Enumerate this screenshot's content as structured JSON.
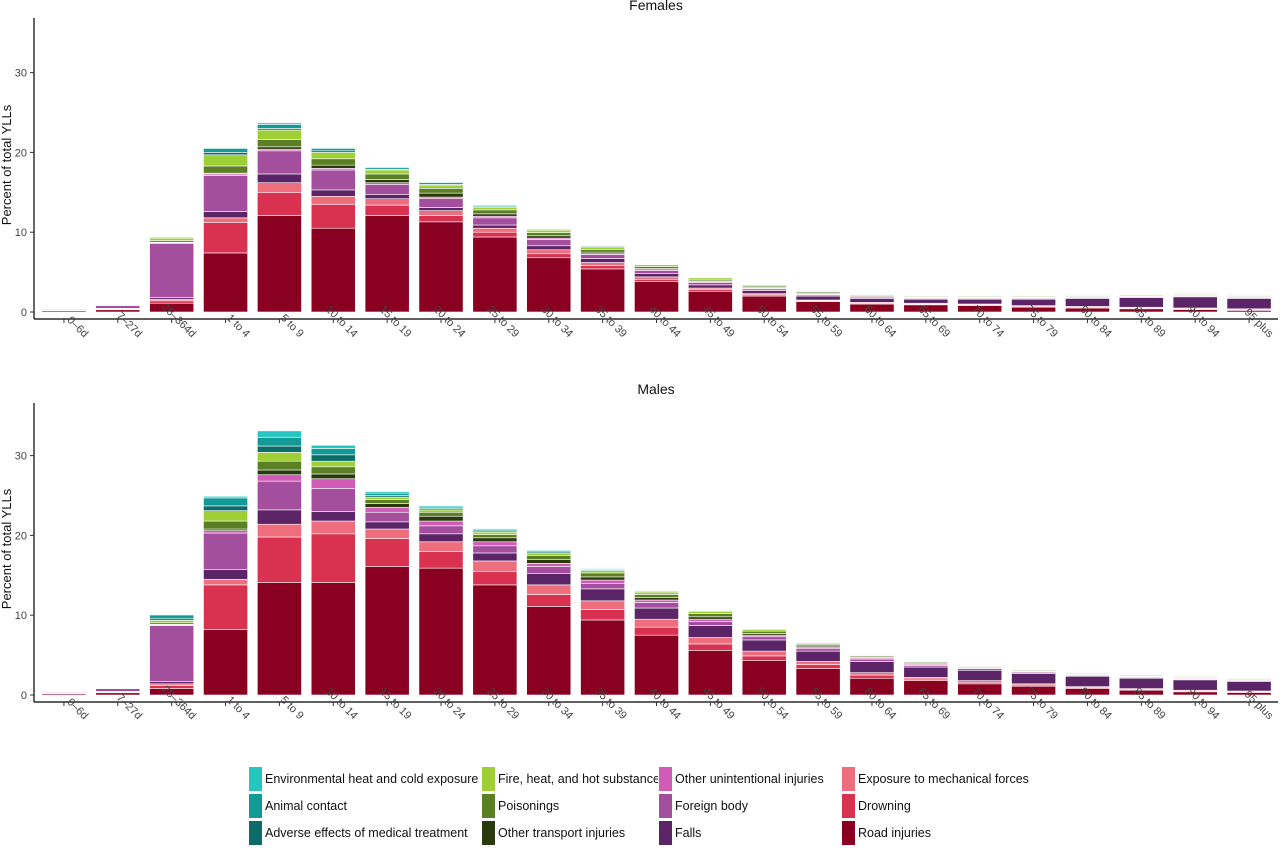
{
  "chart_data": [
    {
      "type": "bar",
      "stacked": true,
      "title": "Females",
      "xlabel": "",
      "ylabel": "Percent of total YLLs",
      "ylim": [
        0,
        35
      ],
      "yticks": [
        0,
        10,
        20,
        30
      ],
      "grid": false,
      "legend_position": "bottom",
      "categories": [
        "0–6d",
        "7–27d",
        "28–364d",
        "1 to 4",
        "5 to 9",
        "10 to 14",
        "15 to 19",
        "20 to 24",
        "25 to 29",
        "30 to 34",
        "35 to 39",
        "40 to 44",
        "45 to 49",
        "50 to 54",
        "55 to 59",
        "60 to 64",
        "65 to 69",
        "70 to 74",
        "75 to 79",
        "80 to 84",
        "85 to 89",
        "90 to 94",
        "95 plus"
      ],
      "series": [
        {
          "name": "Road injuries",
          "values": [
            0.2,
            0.3,
            1.1,
            7.4,
            12.1,
            10.5,
            12.1,
            11.3,
            9.4,
            6.8,
            5.4,
            3.8,
            2.6,
            2.0,
            1.3,
            1.0,
            0.9,
            0.8,
            0.6,
            0.5,
            0.4,
            0.3,
            0.2
          ]
        },
        {
          "name": "Drowning",
          "values": [
            0.02,
            0.05,
            0.3,
            3.8,
            2.9,
            3.0,
            1.3,
            0.8,
            0.6,
            0.5,
            0.4,
            0.3,
            0.2,
            0.15,
            0.1,
            0.1,
            0.1,
            0.1,
            0.1,
            0.1,
            0.1,
            0.1,
            0.1
          ]
        },
        {
          "name": "Exposure to mechanical forces",
          "values": [
            0.02,
            0.05,
            0.2,
            0.6,
            1.2,
            1.0,
            0.8,
            0.6,
            0.5,
            0.5,
            0.4,
            0.3,
            0.2,
            0.15,
            0.1,
            0.1,
            0.1,
            0.1,
            0.1,
            0.1,
            0.1,
            0.1,
            0.1
          ]
        },
        {
          "name": "Falls",
          "values": [
            0.02,
            0.05,
            0.2,
            0.8,
            1.1,
            0.8,
            0.5,
            0.4,
            0.4,
            0.5,
            0.5,
            0.4,
            0.4,
            0.4,
            0.5,
            0.5,
            0.5,
            0.6,
            0.8,
            1.0,
            1.2,
            1.4,
            1.3
          ]
        },
        {
          "name": "Foreign body",
          "values": [
            0.15,
            0.4,
            6.8,
            4.5,
            2.9,
            2.5,
            1.3,
            1.1,
            0.9,
            0.8,
            0.5,
            0.4,
            0.3,
            0.2,
            0.15,
            0.15,
            0.1,
            0.1,
            0.1,
            0.1,
            0.1,
            0.1,
            0.1
          ]
        },
        {
          "name": "Other unintentional injuries",
          "values": [
            0.02,
            0.02,
            0.1,
            0.2,
            0.2,
            0.2,
            0.2,
            0.2,
            0.2,
            0.15,
            0.1,
            0.1,
            0.1,
            0.1,
            0.1,
            0.1,
            0.1,
            0.1,
            0.1,
            0.1,
            0.1,
            0.1,
            0.1
          ]
        },
        {
          "name": "Other transport injuries",
          "values": [
            0.01,
            0.01,
            0.05,
            0.1,
            0.3,
            0.4,
            0.4,
            0.5,
            0.3,
            0.3,
            0.2,
            0.15,
            0.1,
            0.1,
            0.1,
            0.1,
            0.05,
            0.05,
            0.05,
            0.05,
            0.05,
            0.05,
            0.05
          ]
        },
        {
          "name": "Poisonings",
          "values": [
            0.02,
            0.03,
            0.2,
            0.9,
            0.9,
            0.8,
            0.7,
            0.6,
            0.5,
            0.4,
            0.35,
            0.25,
            0.2,
            0.15,
            0.15,
            0.1,
            0.1,
            0.1,
            0.1,
            0.1,
            0.1,
            0.1,
            0.1
          ]
        },
        {
          "name": "Fire, heat, and hot substances",
          "values": [
            0.02,
            0.03,
            0.3,
            1.4,
            1.2,
            0.8,
            0.5,
            0.4,
            0.3,
            0.3,
            0.3,
            0.25,
            0.2,
            0.15,
            0.1,
            0.1,
            0.1,
            0.1,
            0.1,
            0.1,
            0.1,
            0.1,
            0.1
          ]
        },
        {
          "name": "Adverse effects of medical treatment",
          "values": [
            0.01,
            0.01,
            0.1,
            0.3,
            0.2,
            0.2,
            0.1,
            0.1,
            0.1,
            0.1,
            0.1,
            0.05,
            0.05,
            0.05,
            0.05,
            0.05,
            0.05,
            0.05,
            0.05,
            0.05,
            0.05,
            0.05,
            0.05
          ]
        },
        {
          "name": "Animal contact",
          "values": [
            0.01,
            0.01,
            0.1,
            0.5,
            0.5,
            0.3,
            0.2,
            0.2,
            0.15,
            0.1,
            0.1,
            0.05,
            0.05,
            0.05,
            0.05,
            0.05,
            0.05,
            0.05,
            0.05,
            0.05,
            0.05,
            0.05,
            0.05
          ]
        },
        {
          "name": "Environmental heat and cold exposure",
          "values": [
            0.01,
            0.01,
            0.05,
            0.1,
            0.2,
            0.1,
            0.1,
            0.1,
            0.1,
            0.05,
            0.05,
            0.05,
            0.05,
            0.05,
            0.05,
            0.05,
            0.05,
            0.05,
            0.05,
            0.05,
            0.05,
            0.05,
            0.05
          ]
        }
      ]
    },
    {
      "type": "bar",
      "stacked": true,
      "title": "Males",
      "xlabel": "",
      "ylabel": "Percent of total YLLs",
      "ylim": [
        0,
        35
      ],
      "yticks": [
        0,
        10,
        20,
        30
      ],
      "grid": false,
      "legend_position": "bottom",
      "categories": [
        "0–6d",
        "7–27d",
        "28–364d",
        "1 to 4",
        "5 to 9",
        "10 to 14",
        "15 to 19",
        "20 to 24",
        "25 to 29",
        "30 to 34",
        "35 to 39",
        "40 to 44",
        "45 to 49",
        "50 to 54",
        "55 to 59",
        "60 to 64",
        "65 to 69",
        "70 to 74",
        "75 to 79",
        "80 to 84",
        "85 to 89",
        "90 to 94",
        "95 plus"
      ],
      "series": [
        {
          "name": "Road injuries",
          "values": [
            0.2,
            0.3,
            0.8,
            8.2,
            14.1,
            14.1,
            16.1,
            15.9,
            13.8,
            11.1,
            9.4,
            7.5,
            5.6,
            4.3,
            3.3,
            2.1,
            1.8,
            1.4,
            1.1,
            0.8,
            0.6,
            0.4,
            0.3
          ]
        },
        {
          "name": "Drowning",
          "values": [
            0.02,
            0.05,
            0.4,
            5.6,
            5.7,
            6.1,
            3.5,
            2.1,
            1.7,
            1.5,
            1.3,
            1.0,
            0.8,
            0.6,
            0.5,
            0.4,
            0.2,
            0.2,
            0.15,
            0.15,
            0.1,
            0.1,
            0.1
          ]
        },
        {
          "name": "Exposure to mechanical forces",
          "values": [
            0.02,
            0.05,
            0.2,
            0.7,
            1.6,
            1.6,
            1.2,
            1.2,
            1.3,
            1.2,
            1.1,
            1.0,
            0.8,
            0.6,
            0.4,
            0.3,
            0.2,
            0.2,
            0.15,
            0.1,
            0.1,
            0.1,
            0.1
          ]
        },
        {
          "name": "Falls",
          "values": [
            0.02,
            0.05,
            0.3,
            1.2,
            1.8,
            1.2,
            0.9,
            1.0,
            1.0,
            1.4,
            1.5,
            1.4,
            1.5,
            1.4,
            1.3,
            1.4,
            1.3,
            1.3,
            1.3,
            1.3,
            1.3,
            1.3,
            1.2
          ]
        },
        {
          "name": "Foreign body",
          "values": [
            0.15,
            0.4,
            7.0,
            4.6,
            3.6,
            2.9,
            1.2,
            1.0,
            0.9,
            0.9,
            0.7,
            0.7,
            0.5,
            0.4,
            0.3,
            0.3,
            0.2,
            0.2,
            0.15,
            0.1,
            0.1,
            0.1,
            0.1
          ]
        },
        {
          "name": "Other unintentional injuries",
          "values": [
            0.02,
            0.02,
            0.1,
            0.3,
            0.8,
            1.2,
            0.6,
            0.6,
            0.5,
            0.4,
            0.4,
            0.3,
            0.3,
            0.2,
            0.2,
            0.15,
            0.15,
            0.1,
            0.1,
            0.1,
            0.1,
            0.1,
            0.1
          ]
        },
        {
          "name": "Other transport injuries",
          "values": [
            0.01,
            0.01,
            0.05,
            0.2,
            0.6,
            0.6,
            0.5,
            0.6,
            0.5,
            0.5,
            0.4,
            0.3,
            0.3,
            0.2,
            0.15,
            0.1,
            0.1,
            0.05,
            0.05,
            0.05,
            0.05,
            0.05,
            0.05
          ]
        },
        {
          "name": "Poisonings",
          "values": [
            0.02,
            0.03,
            0.2,
            1.0,
            1.1,
            0.9,
            0.5,
            0.5,
            0.4,
            0.5,
            0.5,
            0.4,
            0.4,
            0.3,
            0.2,
            0.15,
            0.15,
            0.1,
            0.1,
            0.1,
            0.1,
            0.1,
            0.1
          ]
        },
        {
          "name": "Fire, heat, and hot substances",
          "values": [
            0.02,
            0.03,
            0.3,
            1.3,
            1.1,
            0.7,
            0.3,
            0.3,
            0.3,
            0.3,
            0.3,
            0.3,
            0.25,
            0.2,
            0.15,
            0.1,
            0.1,
            0.1,
            0.1,
            0.1,
            0.1,
            0.1,
            0.1
          ]
        },
        {
          "name": "Adverse effects of medical treatment",
          "values": [
            0.01,
            0.01,
            0.2,
            0.6,
            0.8,
            0.8,
            0.2,
            0.15,
            0.15,
            0.15,
            0.1,
            0.1,
            0.1,
            0.1,
            0.05,
            0.05,
            0.05,
            0.05,
            0.05,
            0.05,
            0.05,
            0.05,
            0.05
          ]
        },
        {
          "name": "Animal contact",
          "values": [
            0.01,
            0.01,
            0.5,
            1.0,
            1.1,
            0.8,
            0.3,
            0.2,
            0.15,
            0.15,
            0.1,
            0.1,
            0.1,
            0.05,
            0.05,
            0.05,
            0.05,
            0.05,
            0.05,
            0.05,
            0.05,
            0.05,
            0.05
          ]
        },
        {
          "name": "Environmental heat and cold exposure",
          "values": [
            0.01,
            0.01,
            0.05,
            0.2,
            0.8,
            0.4,
            0.2,
            0.15,
            0.15,
            0.1,
            0.1,
            0.05,
            0.05,
            0.05,
            0.05,
            0.05,
            0.05,
            0.05,
            0.05,
            0.05,
            0.05,
            0.05,
            0.05
          ]
        }
      ]
    }
  ],
  "legend": {
    "items": [
      {
        "name": "Environmental heat and cold exposure",
        "color": "#26c6c0"
      },
      {
        "name": "Animal contact",
        "color": "#119a96"
      },
      {
        "name": "Adverse effects of medical treatment",
        "color": "#0b6c69"
      },
      {
        "name": "Fire, heat, and hot substances",
        "color": "#9ecf34"
      },
      {
        "name": "Poisonings",
        "color": "#5b7f24"
      },
      {
        "name": "Other transport injuries",
        "color": "#2b3a0d"
      },
      {
        "name": "Other unintentional injuries",
        "color": "#d05cb7"
      },
      {
        "name": "Foreign body",
        "color": "#a44f9e"
      },
      {
        "name": "Falls",
        "color": "#5a2466"
      },
      {
        "name": "Exposure to mechanical forces",
        "color": "#ef6e7e"
      },
      {
        "name": "Drowning",
        "color": "#d93150"
      },
      {
        "name": "Road injuries",
        "color": "#8a0020"
      }
    ]
  }
}
